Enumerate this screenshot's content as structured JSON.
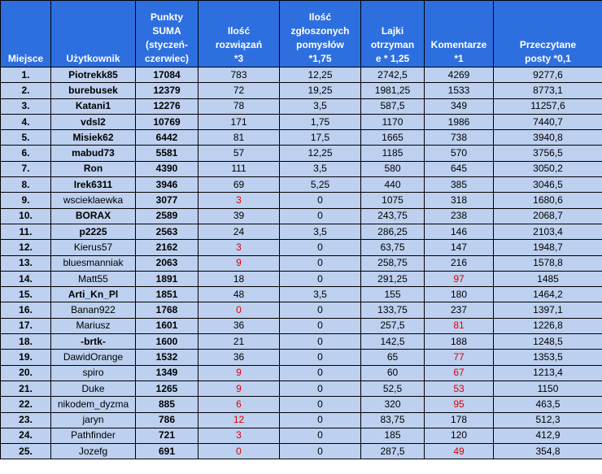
{
  "colors": {
    "header_bg": "#2e6fe0",
    "row_bg": "#bdd0ef",
    "highlight_text": "#e00000"
  },
  "headers": {
    "rank": "Miejsce",
    "user": "Użytkownik",
    "sum_l1": "Punkty",
    "sum_l2": "SUMA",
    "sum_l3": "(styczeń-",
    "sum_l4": "czerwiec)",
    "solved_l1": "Ilość",
    "solved_l2": "rozwiązań",
    "solved_l3": "*3",
    "ideas_l1": "Ilość",
    "ideas_l2": "zgłoszonych",
    "ideas_l3": "pomysłów",
    "ideas_l4": "*1,75",
    "likes_l1": "Lajki",
    "likes_l2": "otrzyman",
    "likes_l3": "e * 1,25",
    "comments_l1": "Komentarze",
    "comments_l2": "*1",
    "posts_l1": "Przeczytane",
    "posts_l2": "posty *0,1"
  },
  "rows": [
    {
      "rank": "1.",
      "user": "Piotrekk85",
      "user_bold": true,
      "sum": "17084",
      "solved": "783",
      "ideas": "12,25",
      "likes": "2742,5",
      "comments": "4269",
      "posts": "9277,6"
    },
    {
      "rank": "2.",
      "user": "burebusek",
      "user_bold": true,
      "sum": "12379",
      "solved": "72",
      "ideas": "19,25",
      "likes": "1981,25",
      "comments": "1533",
      "posts": "8773,1"
    },
    {
      "rank": "3.",
      "user": "Katani1",
      "user_bold": true,
      "sum": "12276",
      "solved": "78",
      "ideas": "3,5",
      "likes": "587,5",
      "comments": "349",
      "posts": "11257,6"
    },
    {
      "rank": "4.",
      "user": "vdsl2",
      "user_bold": true,
      "sum": "10769",
      "solved": "171",
      "ideas": "1,75",
      "likes": "1170",
      "comments": "1986",
      "posts": "7440,7"
    },
    {
      "rank": "5.",
      "user": "Misiek62",
      "user_bold": true,
      "sum": "6442",
      "solved": "81",
      "ideas": "17,5",
      "likes": "1665",
      "comments": "738",
      "posts": "3940,8"
    },
    {
      "rank": "6.",
      "user": "mabud73",
      "user_bold": true,
      "sum": "5581",
      "solved": "57",
      "ideas": "12,25",
      "likes": "1185",
      "comments": "570",
      "posts": "3756,5"
    },
    {
      "rank": "7.",
      "user": "Ron",
      "user_bold": true,
      "sum": "4390",
      "solved": "111",
      "ideas": "3,5",
      "likes": "580",
      "comments": "645",
      "posts": "3050,2"
    },
    {
      "rank": "8.",
      "user": "Irek6311",
      "user_bold": true,
      "sum": "3946",
      "solved": "69",
      "ideas": "5,25",
      "likes": "440",
      "comments": "385",
      "posts": "3046,5"
    },
    {
      "rank": "9.",
      "user": "wscieklaewka",
      "user_bold": false,
      "sum": "3077",
      "solved": "3",
      "solved_hl": true,
      "ideas": "0",
      "likes": "1075",
      "comments": "318",
      "posts": "1680,6"
    },
    {
      "rank": "10.",
      "user": "BORAX",
      "user_bold": true,
      "sum": "2589",
      "solved": "39",
      "ideas": "0",
      "likes": "243,75",
      "comments": "238",
      "posts": "2068,7"
    },
    {
      "rank": "11.",
      "user": "p2225",
      "user_bold": true,
      "sum": "2563",
      "solved": "24",
      "ideas": "3,5",
      "likes": "286,25",
      "comments": "146",
      "posts": "2103,4"
    },
    {
      "rank": "12.",
      "user": "Kierus57",
      "user_bold": false,
      "sum": "2162",
      "solved": "3",
      "solved_hl": true,
      "ideas": "0",
      "likes": "63,75",
      "comments": "147",
      "posts": "1948,7"
    },
    {
      "rank": "13.",
      "user": "bluesmanniak",
      "user_bold": false,
      "sum": "2063",
      "solved": "9",
      "solved_hl": true,
      "ideas": "0",
      "likes": "258,75",
      "comments": "216",
      "posts": "1578,8"
    },
    {
      "rank": "14.",
      "user": "Matt55",
      "user_bold": false,
      "sum": "1891",
      "solved": "18",
      "ideas": "0",
      "likes": "291,25",
      "comments": "97",
      "comments_hl": true,
      "posts": "1485"
    },
    {
      "rank": "15.",
      "user": "Arti_Kn_Pl",
      "user_bold": true,
      "sum": "1851",
      "solved": "48",
      "ideas": "3,5",
      "likes": "155",
      "comments": "180",
      "posts": "1464,2"
    },
    {
      "rank": "16.",
      "user": "Banan922",
      "user_bold": false,
      "sum": "1768",
      "solved": "0",
      "solved_hl": true,
      "ideas": "0",
      "likes": "133,75",
      "comments": "237",
      "posts": "1397,1"
    },
    {
      "rank": "17.",
      "user": "Mariusz",
      "user_bold": false,
      "sum": "1601",
      "solved": "36",
      "ideas": "0",
      "likes": "257,5",
      "comments": "81",
      "comments_hl": true,
      "posts": "1226,8"
    },
    {
      "rank": "18.",
      "user": "-brtk-",
      "user_bold": true,
      "sum": "1600",
      "solved": "21",
      "ideas": "0",
      "likes": "142,5",
      "comments": "188",
      "posts": "1248,5"
    },
    {
      "rank": "19.",
      "user": "DawidOrange",
      "user_bold": false,
      "sum": "1532",
      "solved": "36",
      "ideas": "0",
      "likes": "65",
      "comments": "77",
      "comments_hl": true,
      "posts": "1353,5"
    },
    {
      "rank": "20.",
      "user": "spiro",
      "user_bold": false,
      "sum": "1349",
      "solved": "9",
      "solved_hl": true,
      "ideas": "0",
      "likes": "60",
      "comments": "67",
      "comments_hl": true,
      "posts": "1213,4"
    },
    {
      "rank": "21.",
      "user": "Duke",
      "user_bold": false,
      "sum": "1265",
      "solved": "9",
      "solved_hl": true,
      "ideas": "0",
      "likes": "52,5",
      "comments": "53",
      "comments_hl": true,
      "posts": "1150"
    },
    {
      "rank": "22.",
      "user": "nikodem_dyzma",
      "user_bold": false,
      "sum": "885",
      "solved": "6",
      "solved_hl": true,
      "ideas": "0",
      "likes": "320",
      "comments": "95",
      "comments_hl": true,
      "posts": "463,5"
    },
    {
      "rank": "23.",
      "user": "jaryn",
      "user_bold": false,
      "sum": "786",
      "solved": "12",
      "solved_hl": true,
      "ideas": "0",
      "likes": "83,75",
      "comments": "178",
      "posts": "512,3"
    },
    {
      "rank": "24.",
      "user": "Pathfinder",
      "user_bold": false,
      "sum": "721",
      "solved": "3",
      "solved_hl": true,
      "ideas": "0",
      "likes": "185",
      "comments": "120",
      "posts": "412,9"
    },
    {
      "rank": "25.",
      "user": "Jozefg",
      "user_bold": false,
      "sum": "691",
      "solved": "0",
      "solved_hl": true,
      "ideas": "0",
      "likes": "287,5",
      "comments": "49",
      "comments_hl": true,
      "posts": "354,8"
    }
  ]
}
